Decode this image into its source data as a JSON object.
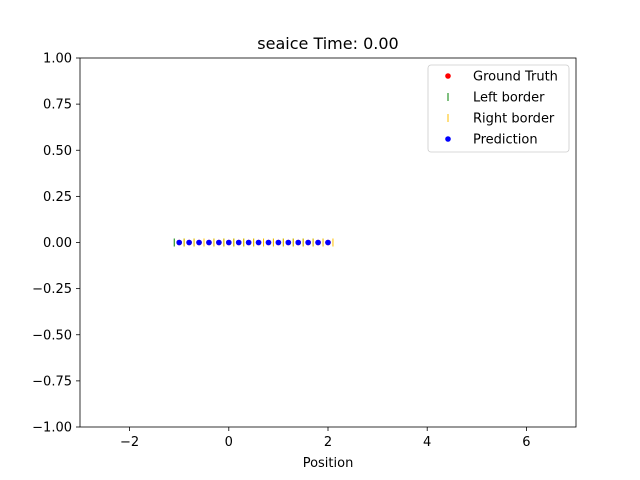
{
  "chart_data": {
    "type": "scatter",
    "title": "seaice Time: 0.00",
    "xlabel": "Position",
    "ylabel": "",
    "xlim": [
      -3,
      7
    ],
    "ylim": [
      -1,
      1
    ],
    "xticks": [
      -2,
      0,
      2,
      4,
      6
    ],
    "xtick_labels": [
      "−2",
      "0",
      "2",
      "4",
      "6"
    ],
    "yticks": [
      -1,
      -0.75,
      -0.5,
      -0.25,
      0,
      0.25,
      0.5,
      0.75,
      1
    ],
    "ytick_labels": [
      "−1.00",
      "−0.75",
      "−0.50",
      "−0.25",
      "0.00",
      "0.25",
      "0.50",
      "0.75",
      "1.00"
    ],
    "legend_position": "top-right",
    "series": [
      {
        "name": "Ground Truth",
        "marker": "dot",
        "color": "#ff0000",
        "x": [
          -1.0,
          -0.8,
          -0.6,
          -0.4,
          -0.2,
          0.0,
          0.2,
          0.4,
          0.6,
          0.8,
          1.0,
          1.2,
          1.4,
          1.6,
          1.8,
          2.0
        ],
        "y": [
          0,
          0,
          0,
          0,
          0,
          0,
          0,
          0,
          0,
          0,
          0,
          0,
          0,
          0,
          0,
          0
        ]
      },
      {
        "name": "Left border",
        "marker": "vline",
        "color": "#008000",
        "x": [
          -1.1,
          -0.9,
          -0.7,
          -0.5,
          -0.3,
          -0.1,
          0.1,
          0.3,
          0.5,
          0.7,
          0.9,
          1.1,
          1.3,
          1.5,
          1.7,
          1.9
        ],
        "y": [
          0,
          0,
          0,
          0,
          0,
          0,
          0,
          0,
          0,
          0,
          0,
          0,
          0,
          0,
          0,
          0
        ]
      },
      {
        "name": "Right border",
        "marker": "vline",
        "color": "#ffbf00",
        "x": [
          -0.9,
          -0.7,
          -0.5,
          -0.3,
          -0.1,
          0.1,
          0.3,
          0.5,
          0.7,
          0.9,
          1.1,
          1.3,
          1.5,
          1.7,
          1.9,
          2.1
        ],
        "y": [
          0,
          0,
          0,
          0,
          0,
          0,
          0,
          0,
          0,
          0,
          0,
          0,
          0,
          0,
          0,
          0
        ]
      },
      {
        "name": "Prediction",
        "marker": "dot",
        "color": "#0000ff",
        "x": [
          -1.0,
          -0.8,
          -0.6,
          -0.4,
          -0.2,
          0.0,
          0.2,
          0.4,
          0.6,
          0.8,
          1.0,
          1.2,
          1.4,
          1.6,
          1.8,
          2.0
        ],
        "y": [
          0,
          0,
          0,
          0,
          0,
          0,
          0,
          0,
          0,
          0,
          0,
          0,
          0,
          0,
          0,
          0
        ]
      }
    ]
  }
}
